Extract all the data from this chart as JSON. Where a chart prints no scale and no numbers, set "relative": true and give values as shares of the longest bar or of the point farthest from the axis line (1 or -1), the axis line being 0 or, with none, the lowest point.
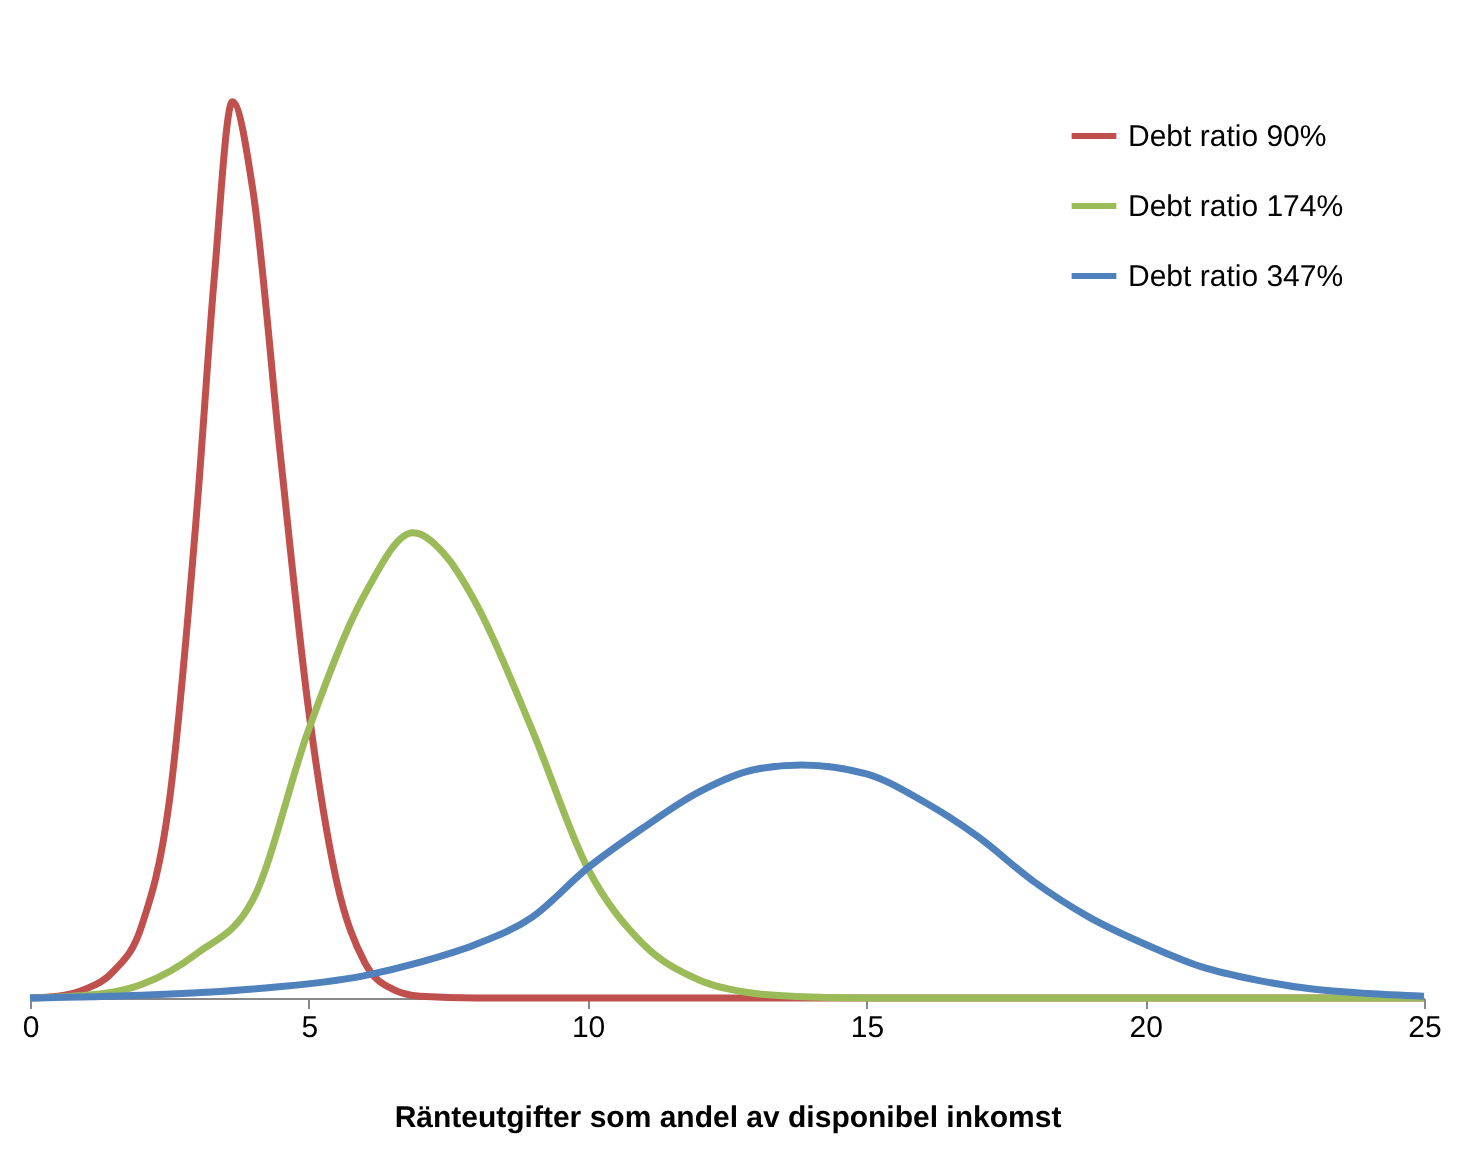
{
  "chart_data": {
    "type": "line",
    "relative": true,
    "xlabel": "Ränteutgifter som andel av disponibel inkomst",
    "xlim": [
      0,
      25
    ],
    "xticks": [
      0,
      5,
      10,
      15,
      20,
      25
    ],
    "grid": false,
    "legend": "top right",
    "line_style": "solid",
    "marker": "none",
    "series": [
      {
        "name": "Debt ratio 90%",
        "color": "#c0504d",
        "x": [
          0,
          0.5,
          1,
          1.5,
          2,
          2.5,
          3,
          3.3,
          3.63,
          4,
          4.5,
          5,
          5.5,
          6,
          6.5,
          7,
          8,
          10,
          15,
          20,
          25
        ],
        "values": [
          0,
          0.002,
          0.01,
          0.03,
          0.08,
          0.22,
          0.55,
          0.8,
          1.0,
          0.9,
          0.6,
          0.32,
          0.13,
          0.04,
          0.01,
          0.002,
          0,
          0,
          0,
          0,
          0
        ]
      },
      {
        "name": "Debt ratio 174%",
        "color": "#9bbb59",
        "x": [
          0,
          1,
          2,
          3,
          4,
          5,
          6,
          6.87,
          7.5,
          8,
          9,
          10,
          11,
          12,
          13,
          14,
          15,
          20,
          25
        ],
        "values": [
          0,
          0.003,
          0.015,
          0.05,
          0.11,
          0.3,
          0.45,
          0.519,
          0.49,
          0.44,
          0.3,
          0.145,
          0.06,
          0.02,
          0.005,
          0.001,
          0,
          0,
          0
        ]
      },
      {
        "name": "Debt ratio 347%",
        "color": "#4f81bd",
        "x": [
          0,
          2,
          4,
          6,
          7,
          8,
          9,
          10,
          11,
          12,
          13,
          13.84,
          15,
          16,
          17,
          18,
          19,
          20,
          21,
          22,
          23,
          24,
          25
        ],
        "values": [
          0,
          0.003,
          0.01,
          0.025,
          0.04,
          0.06,
          0.09,
          0.145,
          0.19,
          0.23,
          0.255,
          0.26,
          0.25,
          0.22,
          0.18,
          0.13,
          0.09,
          0.06,
          0.035,
          0.02,
          0.01,
          0.005,
          0.002
        ]
      }
    ]
  }
}
